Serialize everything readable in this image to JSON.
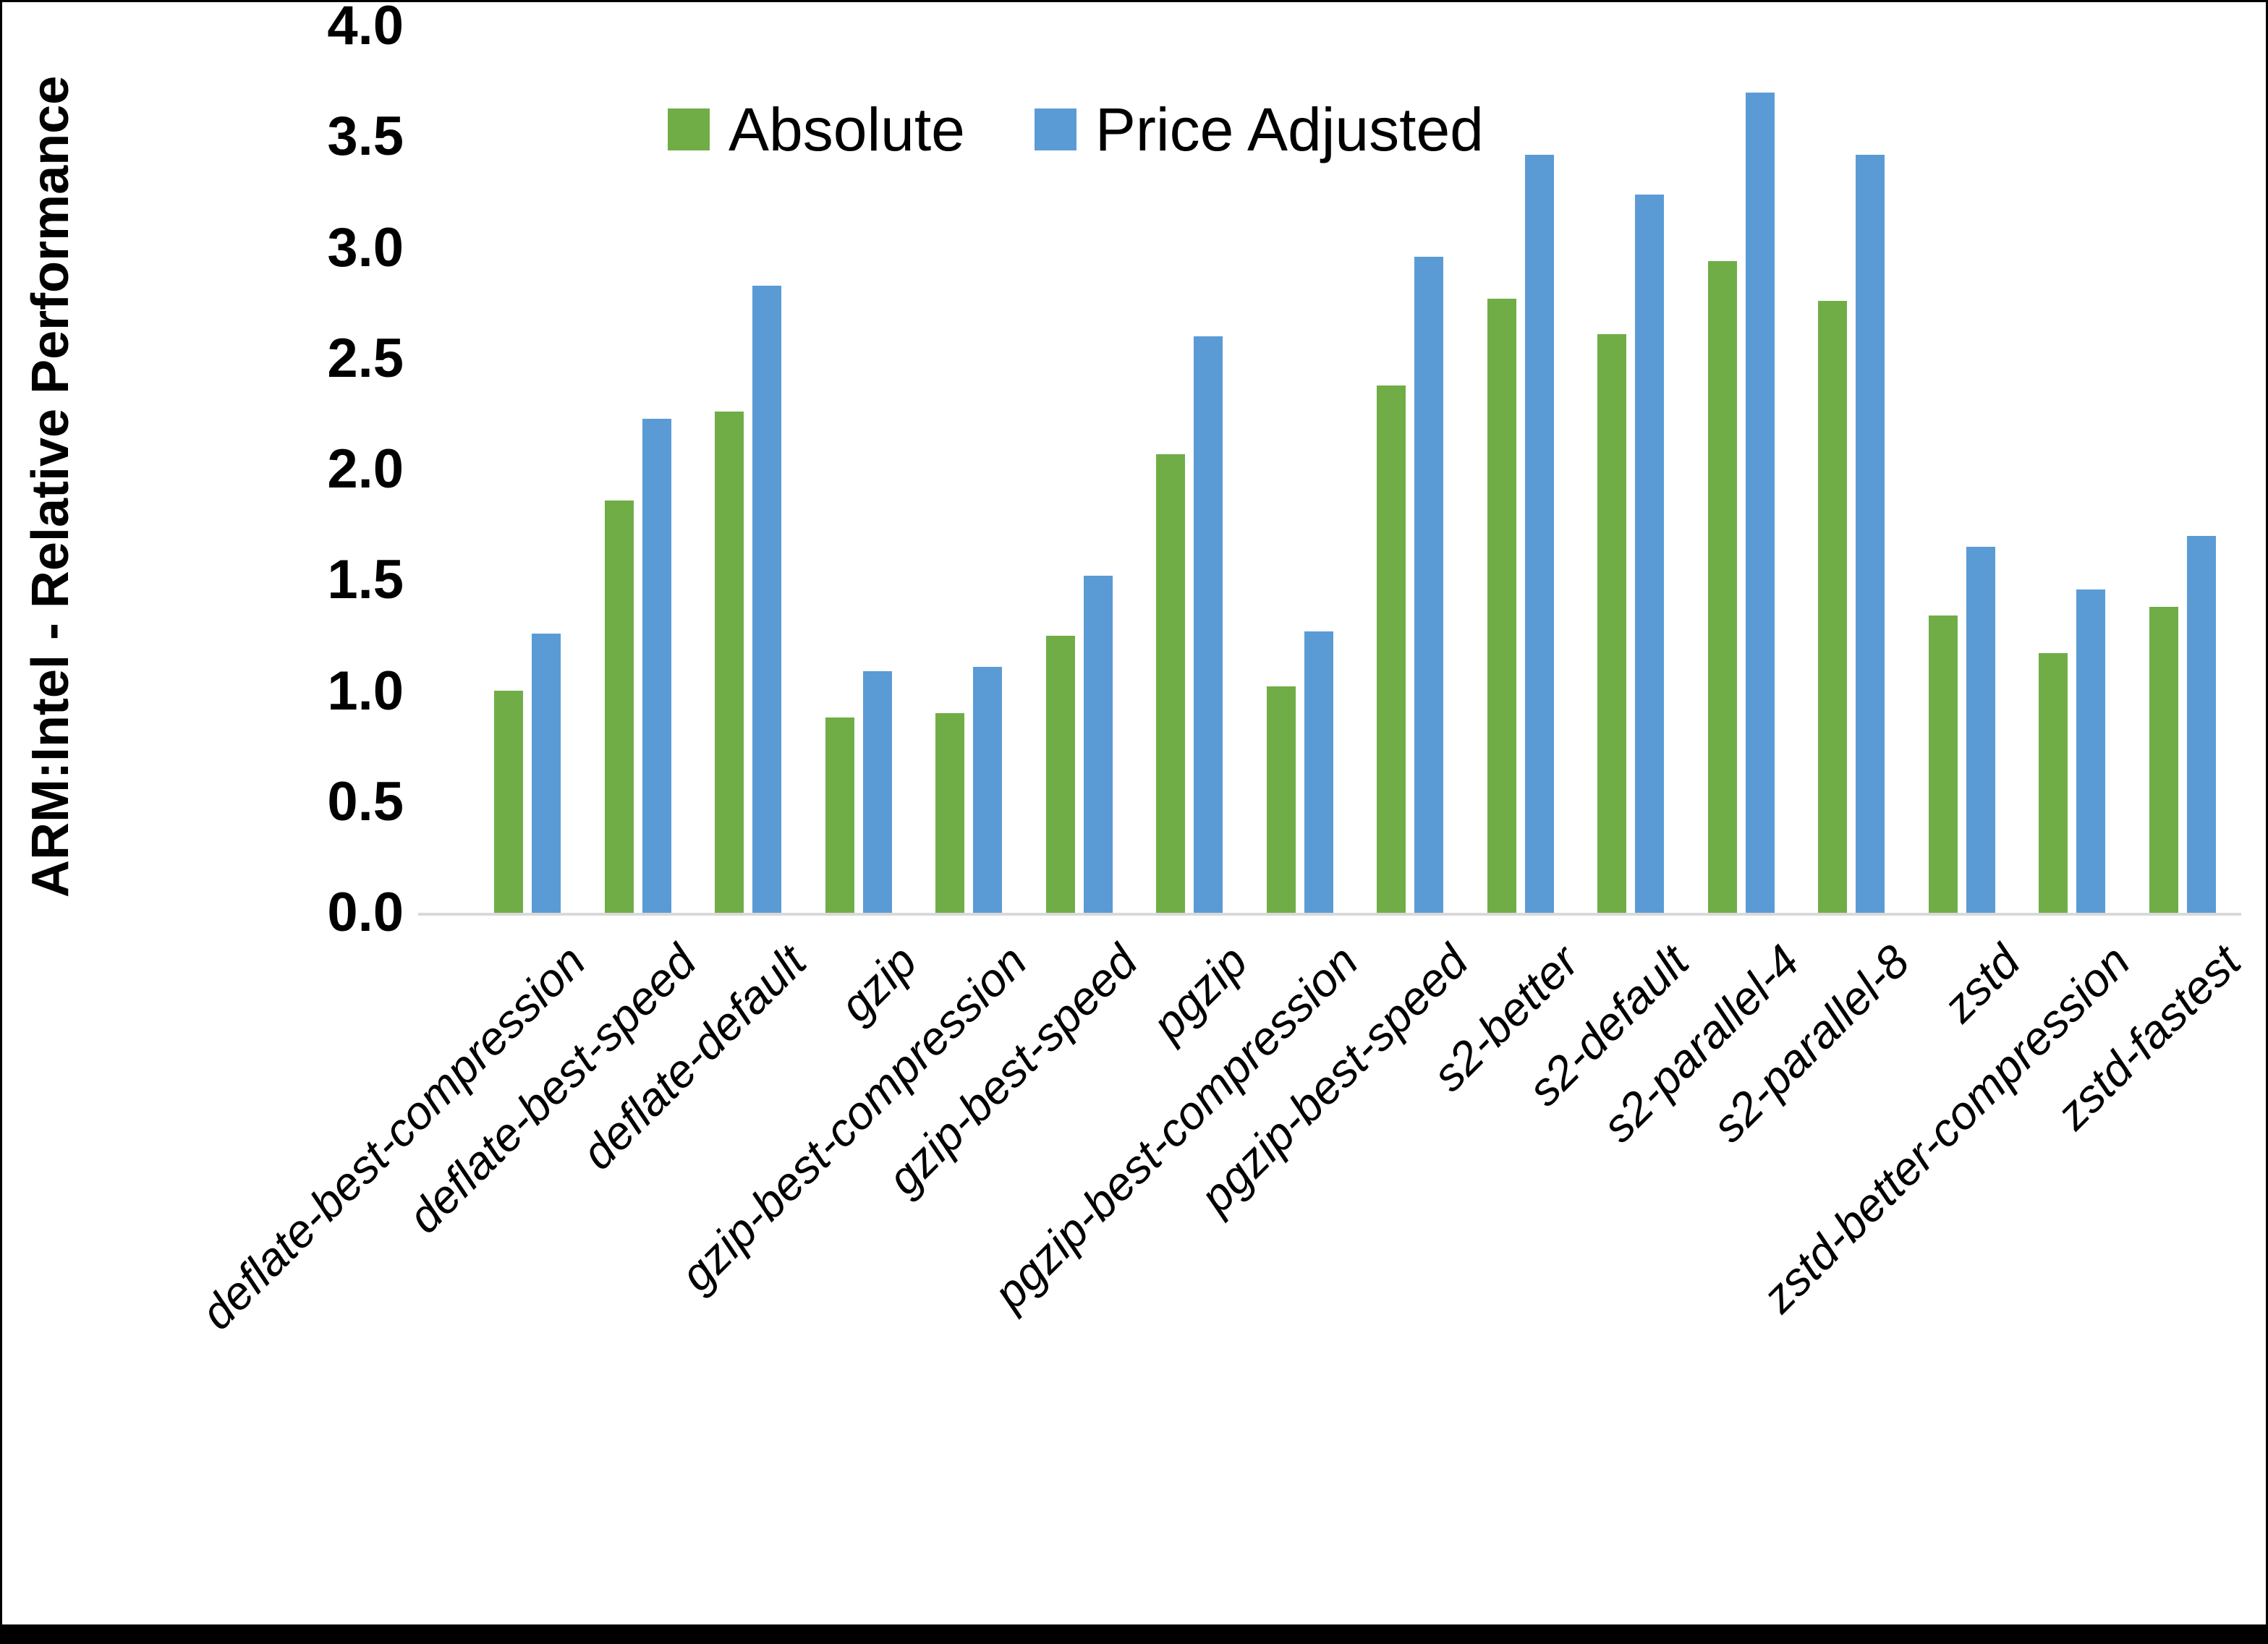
{
  "chart_data": {
    "type": "bar",
    "title": "",
    "xlabel": "",
    "ylabel": "ARM:Intel - Relative Performance",
    "ylim": [
      0.0,
      4.0
    ],
    "ytick_step": 0.5,
    "ytick_labels": [
      "0.0",
      "0.5",
      "1.0",
      "1.5",
      "2.0",
      "2.5",
      "3.0",
      "3.5",
      "4.0"
    ],
    "grid": false,
    "legend_position": "top-center",
    "categories": [
      "deflate-best-compression",
      "deflate-best-speed",
      "deflate-default",
      "gzip",
      "gzip-best-compression",
      "gzip-best-speed",
      "pgzip",
      "pgzip-best-compression",
      "pgzip-best-speed",
      "s2-better",
      "s2-default",
      "s2-parallel-4",
      "s2-parallel-8",
      "zstd",
      "zstd-better-compression",
      "zstd-fastest"
    ],
    "series": [
      {
        "name": "Absolute",
        "color": "#70AD47",
        "values": [
          1.0,
          1.86,
          2.26,
          0.88,
          0.9,
          1.25,
          2.07,
          1.02,
          2.38,
          2.77,
          2.61,
          2.94,
          2.76,
          1.34,
          1.17,
          1.38
        ]
      },
      {
        "name": "Price Adjusted",
        "color": "#5B9BD5",
        "values": [
          1.26,
          2.23,
          2.83,
          1.09,
          1.11,
          1.52,
          2.6,
          1.27,
          2.96,
          3.42,
          3.24,
          3.7,
          3.42,
          1.65,
          1.46,
          1.7
        ]
      }
    ]
  },
  "colors": {
    "background": "#FFFFFF",
    "axis_line": "#D9D9D9",
    "text": "#000000",
    "bottom_bar": "#000000"
  }
}
